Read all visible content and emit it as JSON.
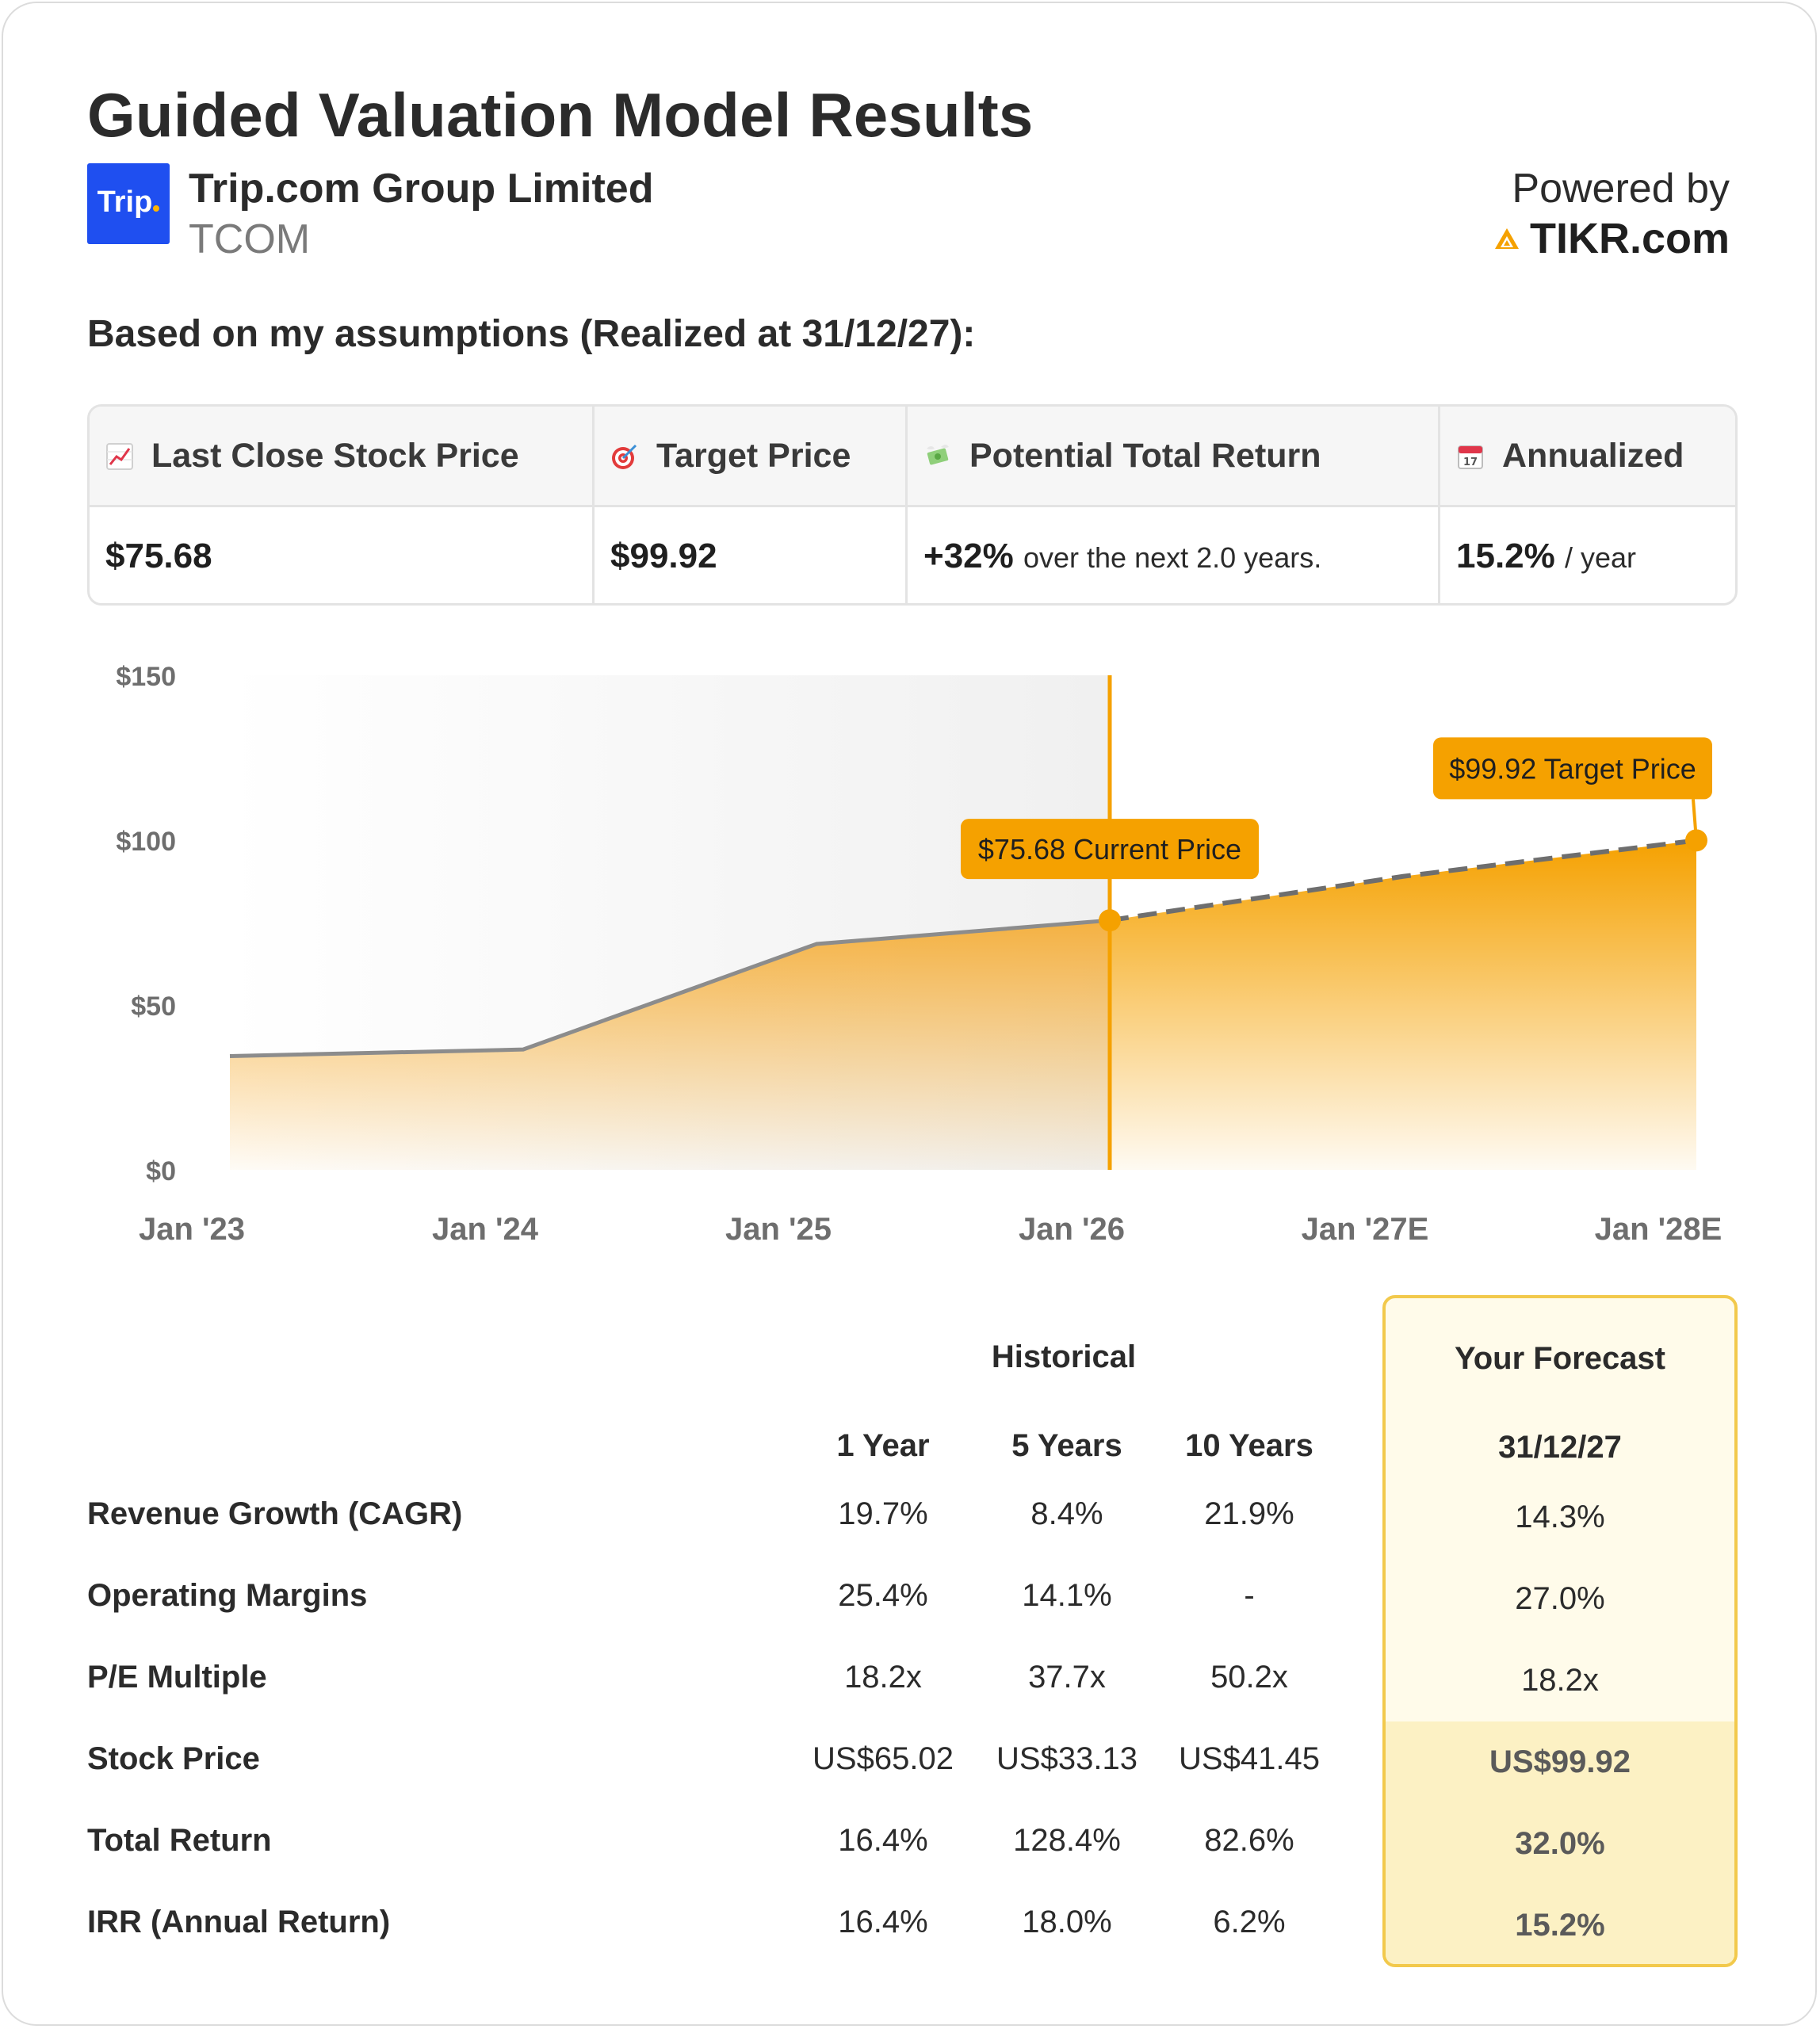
{
  "header": {
    "title": "Guided Valuation Model Results",
    "logo_text": "Trip",
    "company_name": "Trip.com Group Limited",
    "ticker": "TCOM",
    "powered_by": "Powered by",
    "powered_brand": "TIKR.com"
  },
  "assumptions_label": "Based on my assumptions (Realized at 31/12/27):",
  "summary": {
    "last_close_label": "Last Close Stock Price",
    "last_close_value": "$75.68",
    "target_label": "Target Price",
    "target_value": "$99.92",
    "return_label": "Potential Total Return",
    "return_value": "+32%",
    "return_suffix": "over the next 2.0 years.",
    "annualized_label": "Annualized",
    "annualized_value": "15.2%",
    "annualized_suffix": "/ year",
    "calendar_day": "17"
  },
  "colors": {
    "accent": "#f5a100",
    "line": "#8c8c8c",
    "forecast_border": "#f2c94c",
    "forecast_bg": "#fffbea",
    "forecast_bg_dark": "#fcf1c4",
    "logo_blue": "#1f4ff0"
  },
  "chart_data": {
    "type": "area",
    "y_ticks": [
      "$150",
      "$100",
      "$50",
      "$0"
    ],
    "ylim": [
      0,
      150
    ],
    "x_ticks": [
      "Jan '23",
      "Jan '24",
      "Jan '25",
      "Jan '26",
      "Jan '27E",
      "Jan '28E"
    ],
    "historical": [
      {
        "x": "2023-01",
        "y": 34.5
      },
      {
        "x": "2024-01",
        "y": 36.5
      },
      {
        "x": "2025-01",
        "y": 68.5
      },
      {
        "x": "2026-01",
        "y": 75.68
      }
    ],
    "forecast": [
      {
        "x": "2026-01",
        "y": 75.68
      },
      {
        "x": "2027-01",
        "y": 89.0
      },
      {
        "x": "2028-01",
        "y": 99.92
      }
    ],
    "current_label": "$75.68 Current Price",
    "target_label": "$99.92 Target Price"
  },
  "table": {
    "historical_label": "Historical",
    "forecast_label": "Your Forecast",
    "columns": [
      "1 Year",
      "5 Years",
      "10 Years"
    ],
    "forecast_date": "31/12/27",
    "rows": [
      {
        "label": "Revenue Growth (CAGR)",
        "values": [
          "19.7%",
          "8.4%",
          "21.9%"
        ],
        "forecast": "14.3%"
      },
      {
        "label": "Operating Margins",
        "values": [
          "25.4%",
          "14.1%",
          "-"
        ],
        "forecast": "27.0%"
      },
      {
        "label": "P/E Multiple",
        "values": [
          "18.2x",
          "37.7x",
          "50.2x"
        ],
        "forecast": "18.2x"
      },
      {
        "label": "Stock Price",
        "values": [
          "US$65.02",
          "US$33.13",
          "US$41.45"
        ],
        "forecast": "US$99.92"
      },
      {
        "label": "Total Return",
        "values": [
          "16.4%",
          "128.4%",
          "82.6%"
        ],
        "forecast": "32.0%"
      },
      {
        "label": "IRR (Annual Return)",
        "values": [
          "16.4%",
          "18.0%",
          "6.2%"
        ],
        "forecast": "15.2%"
      }
    ]
  }
}
